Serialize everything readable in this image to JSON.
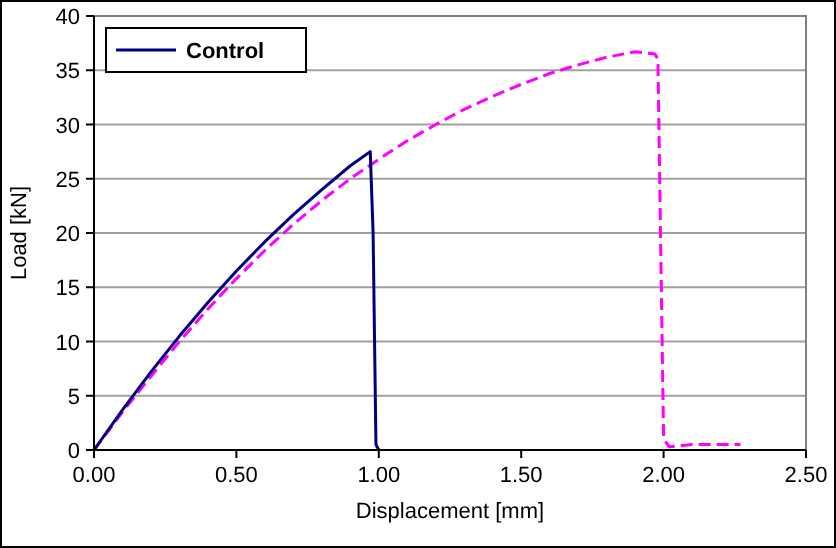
{
  "chart_data": {
    "type": "line",
    "xlabel": "Displacement [mm]",
    "ylabel": "Load [kN]",
    "xlim": [
      0,
      2.5
    ],
    "ylim": [
      0,
      40
    ],
    "xticks": [
      {
        "value": 0,
        "label": "0.00"
      },
      {
        "value": 0.5,
        "label": "0.50"
      },
      {
        "value": 1,
        "label": "1.00"
      },
      {
        "value": 1.5,
        "label": "1.50"
      },
      {
        "value": 2,
        "label": "2.00"
      },
      {
        "value": 2.5,
        "label": "2.50"
      }
    ],
    "yticks": [
      0,
      5,
      10,
      15,
      20,
      25,
      30,
      35,
      40
    ],
    "grid": "y",
    "legend": "top left",
    "marker": "none",
    "series": [
      {
        "color": "#ff00ff",
        "line_style": "dashed",
        "x": [
          0,
          0.1,
          0.2,
          0.3,
          0.4,
          0.5,
          0.6,
          0.7,
          0.8,
          0.9,
          1.0,
          1.1,
          1.2,
          1.3,
          1.4,
          1.5,
          1.6,
          1.7,
          1.8,
          1.9,
          1.97,
          1.98,
          2.0,
          2.02,
          2.1,
          2.27
        ],
        "values": [
          0,
          3.5,
          6.8,
          10,
          13,
          15.8,
          18.4,
          20.8,
          23,
          25,
          26.8,
          28.5,
          30,
          31.4,
          32.6,
          33.7,
          34.7,
          35.5,
          36.2,
          36.7,
          36.5,
          36,
          1,
          0.3,
          0.5,
          0.5
        ]
      },
      {
        "name": "Control",
        "color": "#000080",
        "line_style": "solid",
        "x": [
          0,
          0.1,
          0.2,
          0.3,
          0.4,
          0.5,
          0.6,
          0.7,
          0.8,
          0.9,
          0.97,
          0.98,
          0.99,
          1.0
        ],
        "values": [
          0,
          3.7,
          7.2,
          10.5,
          13.6,
          16.5,
          19.2,
          21.7,
          24,
          26.2,
          27.5,
          20,
          0.5,
          0
        ]
      }
    ]
  }
}
